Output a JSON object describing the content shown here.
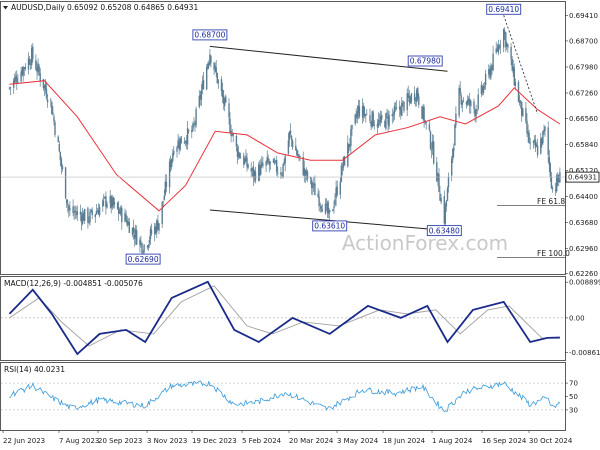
{
  "header": {
    "symbol": "AUDUSD,Daily",
    "ohlc": "0.65092 0.65208 0.64865 0.64931"
  },
  "watermark": "ActionForex.com",
  "colors": {
    "candle": "#5a7d93",
    "ma": "#e8323c",
    "trendline": "#222222",
    "macd_main": "#1a2a8a",
    "macd_signal": "#a0a0a0",
    "rsi": "#3a9ad9",
    "label_border": "#3040b0",
    "label_text": "#1a2a99"
  },
  "indicators": {
    "macd_label": "MACD(12,26,9) -0.004851 -0.005076",
    "rsi_label": "RSI(14) 40.0231"
  },
  "chart_data": [
    {
      "type": "candlestick",
      "panel": "price",
      "title": "AUDUSD,Daily",
      "ylim": [
        0.6225,
        0.6975
      ],
      "y_ticks": [
        "0.69410",
        "0.68700",
        "0.67980",
        "0.67260",
        "0.66560",
        "0.65840",
        "0.65120",
        "0.64931",
        "0.64400",
        "0.63680",
        "0.62960",
        "0.62260"
      ],
      "last_price": "0.64931",
      "x_ticks": [
        "22 Jun 2023",
        "7 Aug 2023",
        "20 Sep 2023",
        "3 Nov 2023",
        "19 Dec 2023",
        "5 Feb 2024",
        "20 Mar 2024",
        "3 May 2024",
        "18 Jun 2024",
        "1 Aug 2024",
        "16 Sep 2024",
        "30 Oct 2024"
      ],
      "close_path": [
        {
          "x": "2023-06-22",
          "y": 0.674
        },
        {
          "x": "2023-07-13",
          "y": 0.683
        },
        {
          "x": "2023-07-31",
          "y": 0.67
        },
        {
          "x": "2023-08-17",
          "y": 0.64
        },
        {
          "x": "2023-09-05",
          "y": 0.638
        },
        {
          "x": "2023-09-22",
          "y": 0.643
        },
        {
          "x": "2023-10-09",
          "y": 0.638
        },
        {
          "x": "2023-10-26",
          "y": 0.63
        },
        {
          "x": "2023-11-10",
          "y": 0.637
        },
        {
          "x": "2023-11-24",
          "y": 0.658
        },
        {
          "x": "2023-12-12",
          "y": 0.662
        },
        {
          "x": "2023-12-28",
          "y": 0.684
        },
        {
          "x": "2024-01-10",
          "y": 0.67
        },
        {
          "x": "2024-01-22",
          "y": 0.657
        },
        {
          "x": "2024-02-07",
          "y": 0.65
        },
        {
          "x": "2024-02-20",
          "y": 0.653
        },
        {
          "x": "2024-03-05",
          "y": 0.651
        },
        {
          "x": "2024-03-12",
          "y": 0.661
        },
        {
          "x": "2024-03-27",
          "y": 0.65
        },
        {
          "x": "2024-04-12",
          "y": 0.642
        },
        {
          "x": "2024-04-19",
          "y": 0.638
        },
        {
          "x": "2024-05-01",
          "y": 0.652
        },
        {
          "x": "2024-05-16",
          "y": 0.668
        },
        {
          "x": "2024-06-05",
          "y": 0.664
        },
        {
          "x": "2024-06-20",
          "y": 0.667
        },
        {
          "x": "2024-07-10",
          "y": 0.673
        },
        {
          "x": "2024-07-25",
          "y": 0.657
        },
        {
          "x": "2024-08-05",
          "y": 0.638
        },
        {
          "x": "2024-08-19",
          "y": 0.672
        },
        {
          "x": "2024-09-03",
          "y": 0.668
        },
        {
          "x": "2024-09-16",
          "y": 0.678
        },
        {
          "x": "2024-09-30",
          "y": 0.69
        },
        {
          "x": "2024-10-14",
          "y": 0.671
        },
        {
          "x": "2024-10-25",
          "y": 0.658
        },
        {
          "x": "2024-11-01",
          "y": 0.657
        },
        {
          "x": "2024-11-08",
          "y": 0.662
        },
        {
          "x": "2024-11-15",
          "y": 0.646
        },
        {
          "x": "2024-11-22",
          "y": 0.649
        }
      ],
      "moving_average": [
        {
          "x": "2023-06-22",
          "y": 0.675
        },
        {
          "x": "2023-07-25",
          "y": 0.676
        },
        {
          "x": "2023-08-25",
          "y": 0.666
        },
        {
          "x": "2023-10-01",
          "y": 0.65
        },
        {
          "x": "2023-11-10",
          "y": 0.64
        },
        {
          "x": "2023-12-05",
          "y": 0.647
        },
        {
          "x": "2024-01-02",
          "y": 0.662
        },
        {
          "x": "2024-02-01",
          "y": 0.661
        },
        {
          "x": "2024-03-01",
          "y": 0.656
        },
        {
          "x": "2024-04-01",
          "y": 0.654
        },
        {
          "x": "2024-05-01",
          "y": 0.654
        },
        {
          "x": "2024-06-01",
          "y": 0.661
        },
        {
          "x": "2024-07-01",
          "y": 0.663
        },
        {
          "x": "2024-08-01",
          "y": 0.666
        },
        {
          "x": "2024-08-25",
          "y": 0.664
        },
        {
          "x": "2024-09-25",
          "y": 0.669
        },
        {
          "x": "2024-10-10",
          "y": 0.674
        },
        {
          "x": "2024-11-01",
          "y": 0.668
        },
        {
          "x": "2024-11-22",
          "y": 0.664
        }
      ],
      "trendlines": [
        {
          "from": {
            "x": "2023-12-28",
            "y": 0.6855
          },
          "to": {
            "x": "2024-08-08",
            "y": 0.6786
          },
          "style": "solid"
        },
        {
          "from": {
            "x": "2023-12-28",
            "y": 0.6402
          },
          "to": {
            "x": "2024-08-08",
            "y": 0.6345
          },
          "style": "solid"
        },
        {
          "from": {
            "x": "2024-09-30",
            "y": 0.6941
          },
          "to": {
            "x": "2024-11-01",
            "y": 0.6668
          },
          "style": "dashed"
        }
      ],
      "annotations": [
        {
          "text": "0.69410",
          "x": "2024-09-30",
          "y": 0.6941
        },
        {
          "text": "0.68700",
          "x": "2023-12-28",
          "y": 0.687
        },
        {
          "text": "0.67980",
          "x": "2024-07-18",
          "y": 0.6798
        },
        {
          "text": "0.63610",
          "x": "2024-04-19",
          "y": 0.6361
        },
        {
          "text": "0.63480",
          "x": "2024-08-05",
          "y": 0.6348
        },
        {
          "text": "0.62690",
          "x": "2023-10-26",
          "y": 0.6269
        }
      ],
      "fe_levels": [
        {
          "label": "FE 61.8",
          "y": 0.6415
        },
        {
          "label": "FE 100.0",
          "y": 0.627
        }
      ]
    },
    {
      "type": "line",
      "panel": "macd",
      "title": "MACD(12,26,9)",
      "ylim": [
        -0.0105,
        0.0102
      ],
      "y_ticks": [
        "0.008899",
        "0.00",
        "-0.008612"
      ],
      "series": [
        {
          "name": "MACD",
          "values": [
            {
              "x": "2023-06-22",
              "y": 0.001
            },
            {
              "x": "2023-07-14",
              "y": 0.007
            },
            {
              "x": "2023-08-01",
              "y": 0.001
            },
            {
              "x": "2023-08-25",
              "y": -0.009
            },
            {
              "x": "2023-09-15",
              "y": -0.004
            },
            {
              "x": "2023-10-10",
              "y": -0.003
            },
            {
              "x": "2023-10-28",
              "y": -0.006
            },
            {
              "x": "2023-11-22",
              "y": 0.005
            },
            {
              "x": "2023-12-26",
              "y": 0.009
            },
            {
              "x": "2024-01-20",
              "y": -0.003
            },
            {
              "x": "2024-02-12",
              "y": -0.006
            },
            {
              "x": "2024-03-15",
              "y": 0.0
            },
            {
              "x": "2024-04-19",
              "y": -0.004
            },
            {
              "x": "2024-05-25",
              "y": 0.003
            },
            {
              "x": "2024-06-25",
              "y": 0.0
            },
            {
              "x": "2024-07-20",
              "y": 0.003
            },
            {
              "x": "2024-08-08",
              "y": -0.006
            },
            {
              "x": "2024-09-01",
              "y": 0.002
            },
            {
              "x": "2024-09-30",
              "y": 0.004
            },
            {
              "x": "2024-10-25",
              "y": -0.006
            },
            {
              "x": "2024-11-10",
              "y": -0.005
            },
            {
              "x": "2024-11-22",
              "y": -0.0049
            }
          ]
        },
        {
          "name": "Signal",
          "values": [
            {
              "x": "2023-06-22",
              "y": 0.0
            },
            {
              "x": "2023-07-20",
              "y": 0.005
            },
            {
              "x": "2023-08-10",
              "y": -0.001
            },
            {
              "x": "2023-09-05",
              "y": -0.007
            },
            {
              "x": "2023-10-05",
              "y": -0.003
            },
            {
              "x": "2023-11-05",
              "y": -0.004
            },
            {
              "x": "2023-12-01",
              "y": 0.004
            },
            {
              "x": "2024-01-01",
              "y": 0.008
            },
            {
              "x": "2024-02-01",
              "y": -0.002
            },
            {
              "x": "2024-02-25",
              "y": -0.004
            },
            {
              "x": "2024-03-25",
              "y": -0.001
            },
            {
              "x": "2024-04-28",
              "y": -0.002
            },
            {
              "x": "2024-06-05",
              "y": 0.002
            },
            {
              "x": "2024-07-01",
              "y": 0.001
            },
            {
              "x": "2024-07-28",
              "y": 0.002
            },
            {
              "x": "2024-08-20",
              "y": -0.004
            },
            {
              "x": "2024-09-15",
              "y": 0.002
            },
            {
              "x": "2024-10-05",
              "y": 0.003
            },
            {
              "x": "2024-11-05",
              "y": -0.005
            },
            {
              "x": "2024-11-22",
              "y": -0.0051
            }
          ]
        }
      ]
    },
    {
      "type": "line",
      "panel": "rsi",
      "title": "RSI(14)",
      "ylim": [
        0,
        100
      ],
      "y_ticks": [
        "70",
        "50",
        "30"
      ],
      "series": [
        {
          "name": "RSI",
          "values": [
            {
              "x": "2023-06-22",
              "y": 52
            },
            {
              "x": "2023-07-14",
              "y": 66
            },
            {
              "x": "2023-08-01",
              "y": 48
            },
            {
              "x": "2023-08-20",
              "y": 32
            },
            {
              "x": "2023-09-15",
              "y": 45
            },
            {
              "x": "2023-10-10",
              "y": 40
            },
            {
              "x": "2023-10-28",
              "y": 36
            },
            {
              "x": "2023-11-22",
              "y": 66
            },
            {
              "x": "2023-12-28",
              "y": 70
            },
            {
              "x": "2024-01-20",
              "y": 38
            },
            {
              "x": "2024-02-12",
              "y": 42
            },
            {
              "x": "2024-03-08",
              "y": 56
            },
            {
              "x": "2024-04-17",
              "y": 31
            },
            {
              "x": "2024-05-20",
              "y": 60
            },
            {
              "x": "2024-06-20",
              "y": 55
            },
            {
              "x": "2024-07-15",
              "y": 65
            },
            {
              "x": "2024-08-05",
              "y": 28
            },
            {
              "x": "2024-08-25",
              "y": 58
            },
            {
              "x": "2024-09-30",
              "y": 70
            },
            {
              "x": "2024-10-25",
              "y": 38
            },
            {
              "x": "2024-11-10",
              "y": 48
            },
            {
              "x": "2024-11-15",
              "y": 33
            },
            {
              "x": "2024-11-22",
              "y": 40
            }
          ]
        }
      ]
    }
  ]
}
